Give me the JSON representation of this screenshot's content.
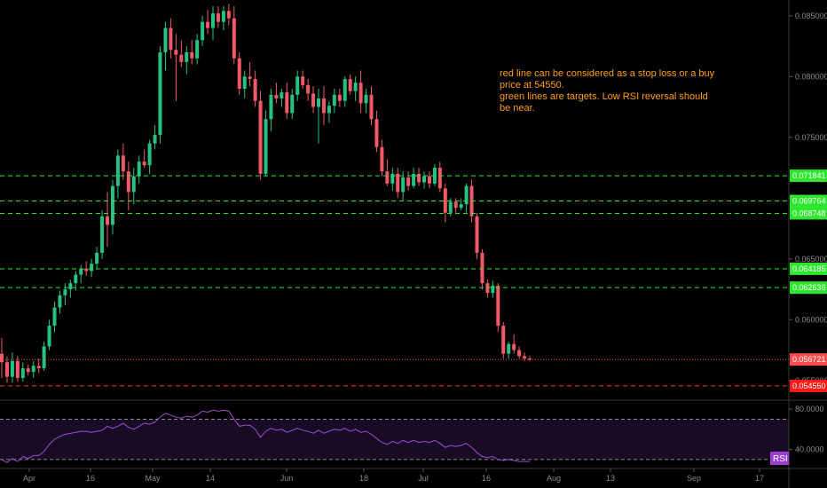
{
  "chart_data": {
    "type": "candlestick",
    "x_ticks": [
      "Apr",
      "16",
      "May",
      "14",
      "Jun",
      "18",
      "Jul",
      "16",
      "Aug",
      "13",
      "Sep",
      "17"
    ],
    "price_axis": {
      "ticks": [
        "0.085000",
        "0.080000",
        "0.075000",
        "0.070000",
        "0.065000",
        "0.060000",
        "0.055000"
      ],
      "ylim": [
        0.05345,
        0.0863
      ]
    },
    "candles": [
      {
        "o": 0.0572,
        "h": 0.0585,
        "l": 0.0552,
        "c": 0.0565
      },
      {
        "o": 0.0565,
        "h": 0.057,
        "l": 0.0548,
        "c": 0.0553
      },
      {
        "o": 0.0553,
        "h": 0.0573,
        "l": 0.0548,
        "c": 0.0566
      },
      {
        "o": 0.0566,
        "h": 0.057,
        "l": 0.0549,
        "c": 0.0552
      },
      {
        "o": 0.0552,
        "h": 0.0565,
        "l": 0.0549,
        "c": 0.056
      },
      {
        "o": 0.056,
        "h": 0.0563,
        "l": 0.0554,
        "c": 0.0557
      },
      {
        "o": 0.0557,
        "h": 0.0566,
        "l": 0.0552,
        "c": 0.0562
      },
      {
        "o": 0.0562,
        "h": 0.0568,
        "l": 0.0556,
        "c": 0.056
      },
      {
        "o": 0.056,
        "h": 0.0582,
        "l": 0.0558,
        "c": 0.0578
      },
      {
        "o": 0.0578,
        "h": 0.06,
        "l": 0.0575,
        "c": 0.0595
      },
      {
        "o": 0.0595,
        "h": 0.0615,
        "l": 0.059,
        "c": 0.061
      },
      {
        "o": 0.061,
        "h": 0.0624,
        "l": 0.0605,
        "c": 0.062
      },
      {
        "o": 0.062,
        "h": 0.063,
        "l": 0.0612,
        "c": 0.0625
      },
      {
        "o": 0.0625,
        "h": 0.0633,
        "l": 0.0618,
        "c": 0.063
      },
      {
        "o": 0.063,
        "h": 0.064,
        "l": 0.0624,
        "c": 0.0637
      },
      {
        "o": 0.0637,
        "h": 0.0645,
        "l": 0.063,
        "c": 0.0642
      },
      {
        "o": 0.0642,
        "h": 0.0648,
        "l": 0.0636,
        "c": 0.064
      },
      {
        "o": 0.064,
        "h": 0.065,
        "l": 0.0635,
        "c": 0.0646
      },
      {
        "o": 0.0646,
        "h": 0.066,
        "l": 0.0642,
        "c": 0.0655
      },
      {
        "o": 0.0655,
        "h": 0.069,
        "l": 0.065,
        "c": 0.0685
      },
      {
        "o": 0.0685,
        "h": 0.0705,
        "l": 0.066,
        "c": 0.0678
      },
      {
        "o": 0.0678,
        "h": 0.0715,
        "l": 0.067,
        "c": 0.071
      },
      {
        "o": 0.071,
        "h": 0.074,
        "l": 0.07,
        "c": 0.0735
      },
      {
        "o": 0.0735,
        "h": 0.0745,
        "l": 0.0715,
        "c": 0.0722
      },
      {
        "o": 0.0722,
        "h": 0.073,
        "l": 0.069,
        "c": 0.0705
      },
      {
        "o": 0.0705,
        "h": 0.0725,
        "l": 0.0695,
        "c": 0.0718
      },
      {
        "o": 0.0718,
        "h": 0.0735,
        "l": 0.0712,
        "c": 0.073
      },
      {
        "o": 0.073,
        "h": 0.074,
        "l": 0.0725,
        "c": 0.0727
      },
      {
        "o": 0.0727,
        "h": 0.0748,
        "l": 0.072,
        "c": 0.0745
      },
      {
        "o": 0.0745,
        "h": 0.076,
        "l": 0.074,
        "c": 0.0752
      },
      {
        "o": 0.0752,
        "h": 0.0825,
        "l": 0.0745,
        "c": 0.082
      },
      {
        "o": 0.082,
        "h": 0.0845,
        "l": 0.0805,
        "c": 0.084
      },
      {
        "o": 0.084,
        "h": 0.0848,
        "l": 0.0815,
        "c": 0.0822
      },
      {
        "o": 0.0822,
        "h": 0.0835,
        "l": 0.078,
        "c": 0.0818
      },
      {
        "o": 0.0818,
        "h": 0.083,
        "l": 0.0808,
        "c": 0.0812
      },
      {
        "o": 0.0812,
        "h": 0.0825,
        "l": 0.0802,
        "c": 0.082
      },
      {
        "o": 0.082,
        "h": 0.083,
        "l": 0.081,
        "c": 0.0815
      },
      {
        "o": 0.0815,
        "h": 0.0835,
        "l": 0.081,
        "c": 0.083
      },
      {
        "o": 0.083,
        "h": 0.085,
        "l": 0.0825,
        "c": 0.0845
      },
      {
        "o": 0.0845,
        "h": 0.0855,
        "l": 0.0835,
        "c": 0.084
      },
      {
        "o": 0.084,
        "h": 0.0858,
        "l": 0.083,
        "c": 0.0852
      },
      {
        "o": 0.0852,
        "h": 0.0858,
        "l": 0.084,
        "c": 0.0845
      },
      {
        "o": 0.0845,
        "h": 0.0858,
        "l": 0.0838,
        "c": 0.0854
      },
      {
        "o": 0.0854,
        "h": 0.086,
        "l": 0.0842,
        "c": 0.0848
      },
      {
        "o": 0.0848,
        "h": 0.0858,
        "l": 0.081,
        "c": 0.0815
      },
      {
        "o": 0.0815,
        "h": 0.082,
        "l": 0.0785,
        "c": 0.079
      },
      {
        "o": 0.079,
        "h": 0.0805,
        "l": 0.0782,
        "c": 0.08
      },
      {
        "o": 0.08,
        "h": 0.0812,
        "l": 0.0792,
        "c": 0.0798
      },
      {
        "o": 0.0798,
        "h": 0.0805,
        "l": 0.0775,
        "c": 0.078
      },
      {
        "o": 0.078,
        "h": 0.0788,
        "l": 0.0715,
        "c": 0.072
      },
      {
        "o": 0.072,
        "h": 0.0772,
        "l": 0.0718,
        "c": 0.0765
      },
      {
        "o": 0.0765,
        "h": 0.079,
        "l": 0.0755,
        "c": 0.0785
      },
      {
        "o": 0.0785,
        "h": 0.0795,
        "l": 0.0778,
        "c": 0.0782
      },
      {
        "o": 0.0782,
        "h": 0.079,
        "l": 0.0775,
        "c": 0.0787
      },
      {
        "o": 0.0787,
        "h": 0.0795,
        "l": 0.0765,
        "c": 0.077
      },
      {
        "o": 0.077,
        "h": 0.079,
        "l": 0.0765,
        "c": 0.0785
      },
      {
        "o": 0.0785,
        "h": 0.0805,
        "l": 0.078,
        "c": 0.08
      },
      {
        "o": 0.08,
        "h": 0.0805,
        "l": 0.079,
        "c": 0.0793
      },
      {
        "o": 0.0793,
        "h": 0.0798,
        "l": 0.078,
        "c": 0.0786
      },
      {
        "o": 0.0786,
        "h": 0.0792,
        "l": 0.077,
        "c": 0.0775
      },
      {
        "o": 0.0775,
        "h": 0.079,
        "l": 0.0745,
        "c": 0.0782
      },
      {
        "o": 0.0782,
        "h": 0.0792,
        "l": 0.076,
        "c": 0.077
      },
      {
        "o": 0.077,
        "h": 0.078,
        "l": 0.0762,
        "c": 0.0776
      },
      {
        "o": 0.0776,
        "h": 0.079,
        "l": 0.077,
        "c": 0.0785
      },
      {
        "o": 0.0785,
        "h": 0.079,
        "l": 0.0775,
        "c": 0.078
      },
      {
        "o": 0.078,
        "h": 0.08,
        "l": 0.0775,
        "c": 0.0798
      },
      {
        "o": 0.0798,
        "h": 0.0802,
        "l": 0.0785,
        "c": 0.0788
      },
      {
        "o": 0.0788,
        "h": 0.08,
        "l": 0.078,
        "c": 0.0795
      },
      {
        "o": 0.0795,
        "h": 0.0805,
        "l": 0.077,
        "c": 0.0778
      },
      {
        "o": 0.0778,
        "h": 0.079,
        "l": 0.077,
        "c": 0.0785
      },
      {
        "o": 0.0785,
        "h": 0.0792,
        "l": 0.076,
        "c": 0.0765
      },
      {
        "o": 0.0765,
        "h": 0.0772,
        "l": 0.0738,
        "c": 0.0742
      },
      {
        "o": 0.0742,
        "h": 0.0748,
        "l": 0.0718,
        "c": 0.0722
      },
      {
        "o": 0.0722,
        "h": 0.0732,
        "l": 0.071,
        "c": 0.0712
      },
      {
        "o": 0.0712,
        "h": 0.0725,
        "l": 0.0706,
        "c": 0.072
      },
      {
        "o": 0.072,
        "h": 0.0725,
        "l": 0.07,
        "c": 0.0705
      },
      {
        "o": 0.0705,
        "h": 0.0722,
        "l": 0.0698,
        "c": 0.0717
      },
      {
        "o": 0.0717,
        "h": 0.0722,
        "l": 0.0706,
        "c": 0.071
      },
      {
        "o": 0.071,
        "h": 0.0725,
        "l": 0.0708,
        "c": 0.072
      },
      {
        "o": 0.072,
        "h": 0.0725,
        "l": 0.071,
        "c": 0.0713
      },
      {
        "o": 0.0713,
        "h": 0.0722,
        "l": 0.0708,
        "c": 0.0718
      },
      {
        "o": 0.0718,
        "h": 0.0722,
        "l": 0.0708,
        "c": 0.0712
      },
      {
        "o": 0.0712,
        "h": 0.0728,
        "l": 0.071,
        "c": 0.0725
      },
      {
        "o": 0.0725,
        "h": 0.073,
        "l": 0.0705,
        "c": 0.0708
      },
      {
        "o": 0.0708,
        "h": 0.0712,
        "l": 0.068,
        "c": 0.0688
      },
      {
        "o": 0.0688,
        "h": 0.07,
        "l": 0.0685,
        "c": 0.0697
      },
      {
        "o": 0.0697,
        "h": 0.07,
        "l": 0.0688,
        "c": 0.0692
      },
      {
        "o": 0.0692,
        "h": 0.07,
        "l": 0.069,
        "c": 0.0695
      },
      {
        "o": 0.0695,
        "h": 0.0712,
        "l": 0.0688,
        "c": 0.071
      },
      {
        "o": 0.071,
        "h": 0.0715,
        "l": 0.068,
        "c": 0.0685
      },
      {
        "o": 0.0685,
        "h": 0.0688,
        "l": 0.065,
        "c": 0.0655
      },
      {
        "o": 0.0655,
        "h": 0.0658,
        "l": 0.0625,
        "c": 0.063
      },
      {
        "o": 0.063,
        "h": 0.0633,
        "l": 0.0618,
        "c": 0.0622
      },
      {
        "o": 0.0622,
        "h": 0.0632,
        "l": 0.0618,
        "c": 0.0628
      },
      {
        "o": 0.0628,
        "h": 0.063,
        "l": 0.059,
        "c": 0.0595
      },
      {
        "o": 0.0595,
        "h": 0.0598,
        "l": 0.0568,
        "c": 0.0572
      },
      {
        "o": 0.0572,
        "h": 0.0582,
        "l": 0.0568,
        "c": 0.058
      },
      {
        "o": 0.058,
        "h": 0.0588,
        "l": 0.0572,
        "c": 0.0575
      },
      {
        "o": 0.0575,
        "h": 0.0578,
        "l": 0.0568,
        "c": 0.057
      },
      {
        "o": 0.057,
        "h": 0.0573,
        "l": 0.0566,
        "c": 0.0568
      },
      {
        "o": 0.0568,
        "h": 0.057,
        "l": 0.0566,
        "c": 0.0567
      }
    ],
    "horizontal_lines": [
      {
        "value": 0.071841,
        "label": "0.071841",
        "color": "#2ee62e",
        "style": "dashed",
        "label_bg": "#2ee62e"
      },
      {
        "value": 0.069764,
        "label": "0.069764",
        "color": "#2ee62e",
        "style": "dashed",
        "label_bg": "#2ee62e"
      },
      {
        "value": 0.068748,
        "label": "0.068748",
        "color": "#2ee62e",
        "style": "dashed",
        "label_bg": "#2ee62e"
      },
      {
        "value": 0.064185,
        "label": "0.064185",
        "color": "#2ee62e",
        "style": "dashed",
        "label_bg": "#2ee62e"
      },
      {
        "value": 0.062636,
        "label": "0.062636",
        "color": "#2ee62e",
        "style": "dashed",
        "label_bg": "#2ee62e"
      },
      {
        "value": 0.056721,
        "label": "0.056721",
        "color": "#ff4d4d",
        "style": "dotted",
        "label_bg": "#ff4d4d"
      },
      {
        "value": 0.05455,
        "label": "0.054550",
        "color": "#ff3333",
        "style": "dashed",
        "label_bg": "#ff1a1a"
      }
    ],
    "rsi": {
      "name": "RSI",
      "ticks": [
        "80.0000",
        "40.0000"
      ],
      "ylim": [
        22,
        88
      ],
      "bands": [
        70,
        30
      ],
      "values": [
        30,
        27,
        31,
        28,
        33,
        31,
        34,
        34,
        38,
        45,
        50,
        53,
        55,
        56,
        57,
        58,
        58,
        57,
        58,
        59,
        63,
        61,
        63,
        66,
        62,
        60,
        63,
        66,
        65,
        67,
        72,
        76,
        74,
        72,
        71,
        73,
        72,
        74,
        78,
        77,
        79,
        78,
        79,
        78,
        70,
        63,
        64,
        64,
        60,
        52,
        58,
        61,
        59,
        60,
        57,
        59,
        61,
        59,
        58,
        56,
        59,
        56,
        58,
        60,
        59,
        61,
        58,
        60,
        57,
        58,
        55,
        51,
        47,
        45,
        48,
        46,
        49,
        47,
        49,
        47,
        48,
        47,
        49,
        46,
        42,
        44,
        43,
        44,
        46,
        42,
        37,
        33,
        32,
        33,
        30,
        29,
        30,
        29,
        28,
        28,
        28
      ],
      "color": "#9b4dd6"
    },
    "annotation": {
      "lines": [
        "red line can be considered as a stop loss or a buy price at 54550.",
        "green lines are targets. Low RSI reversal should be near."
      ]
    },
    "colors": {
      "up": "#26c281",
      "down": "#f05a67",
      "background": "#000000",
      "rsi_badge": "#9b3fd1"
    }
  }
}
